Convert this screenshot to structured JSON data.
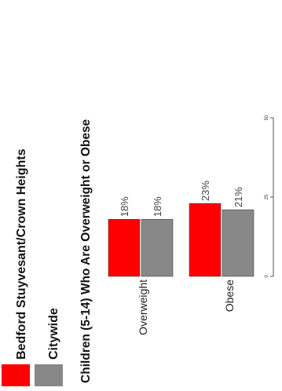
{
  "chart_data": {
    "type": "bar",
    "orientation": "rotated",
    "title": "Children (5-14) Who Are Overweight or Obese",
    "categories": [
      "Overweight",
      "Obese"
    ],
    "series": [
      {
        "name": "Bedford Stuyvesant/Crown Heights",
        "values": [
          18,
          23
        ],
        "value_labels": [
          "18%",
          "23%"
        ],
        "color": "#ff0000"
      },
      {
        "name": "Citywide",
        "values": [
          18,
          21
        ],
        "value_labels": [
          "18%",
          "21%"
        ],
        "color": "#888888"
      }
    ],
    "ylim": [
      0,
      50
    ],
    "yticks": [
      0,
      25,
      50
    ],
    "ytick_labels": [
      "0",
      "25",
      "50"
    ],
    "legend_position": "bottom-left",
    "grid": false
  }
}
